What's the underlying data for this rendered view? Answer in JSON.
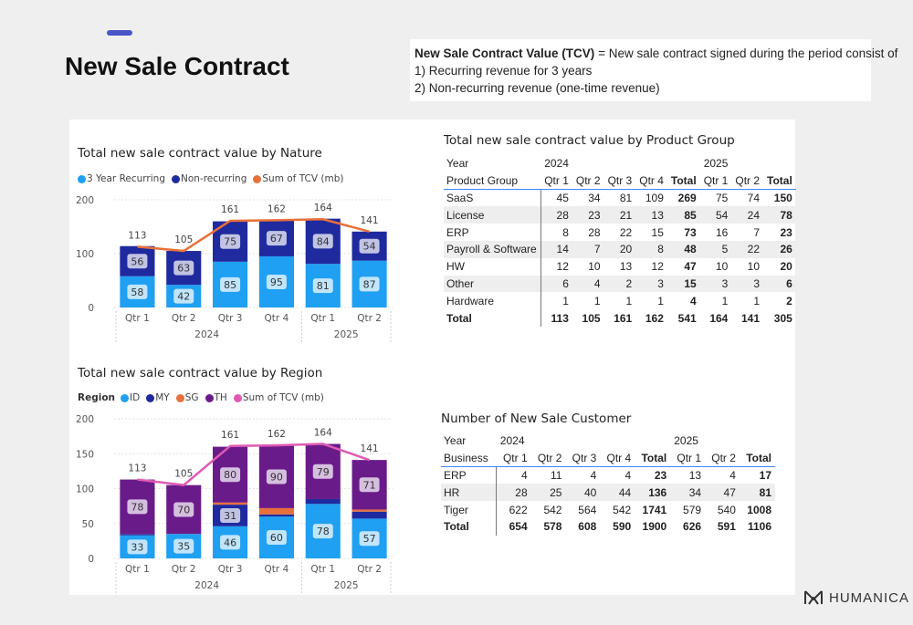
{
  "header": {
    "title": "New Sale Contract",
    "definition_bold": "New Sale Contract Value (TCV)",
    "definition_rest": "= New sale contract signed during the period consist of",
    "definition_line2": "1) Recurring revenue for 3 years",
    "definition_line3": "2) Non-recurring revenue (one-time revenue)"
  },
  "brand": {
    "name": "HUMANICA"
  },
  "colors": {
    "recurring": "#1fa0f2",
    "nonrecurring": "#1f2a9e",
    "tcv_line_nature": "#e8703a",
    "id": "#1fa0f2",
    "my": "#1f2a9e",
    "sg": "#e8703a",
    "th": "#6a1b8a",
    "tcv_line_region": "#e05ab4",
    "table_accent": "#3b86f7"
  },
  "chart_data": [
    {
      "type": "bar",
      "title": "Total new sale contract value by Nature",
      "legend_position": "top-left",
      "categories": [
        "Qtr 1",
        "Qtr 2",
        "Qtr 3",
        "Qtr 4",
        "Qtr 1",
        "Qtr 2"
      ],
      "category_groups": [
        {
          "label": "2024",
          "span": 4
        },
        {
          "label": "2025",
          "span": 2
        }
      ],
      "series": [
        {
          "name": "3 Year Recurring",
          "values": [
            58,
            42,
            85,
            95,
            81,
            87
          ],
          "color": "#1fa0f2"
        },
        {
          "name": "Non-recurring",
          "values": [
            56,
            63,
            75,
            67,
            84,
            54
          ],
          "color": "#1f2a9e"
        }
      ],
      "line": {
        "name": "Sum of TCV (mb)",
        "values": [
          113,
          105,
          161,
          162,
          164,
          141
        ],
        "color": "#e8703a"
      },
      "ylim": [
        0,
        200
      ],
      "yticks": [
        0,
        100,
        200
      ],
      "grid": true
    },
    {
      "type": "bar",
      "title": "Total new sale contract value by Region",
      "legend_title": "Region",
      "legend_position": "top-left",
      "categories": [
        "Qtr 1",
        "Qtr 2",
        "Qtr 3",
        "Qtr 4",
        "Qtr 1",
        "Qtr 2"
      ],
      "category_groups": [
        {
          "label": "2024",
          "span": 4
        },
        {
          "label": "2025",
          "span": 2
        }
      ],
      "series": [
        {
          "name": "ID",
          "values": [
            33,
            35,
            46,
            60,
            78,
            57
          ],
          "color": "#1fa0f2",
          "labels": [
            "33",
            "35",
            "46",
            "60",
            "78",
            "57"
          ]
        },
        {
          "name": "MY",
          "values": [
            2,
            0,
            31,
            3,
            7,
            10
          ],
          "color": "#1f2a9e",
          "labels": [
            "",
            "",
            "31",
            "",
            "",
            ""
          ]
        },
        {
          "name": "SG",
          "values": [
            0,
            0,
            3,
            9,
            0,
            3
          ],
          "color": "#e8703a",
          "labels": [
            "",
            "",
            "",
            "",
            "",
            ""
          ]
        },
        {
          "name": "TH",
          "values": [
            78,
            70,
            80,
            90,
            79,
            71
          ],
          "color": "#6a1b8a",
          "labels": [
            "78",
            "70",
            "80",
            "90",
            "79",
            "71"
          ]
        }
      ],
      "line": {
        "name": "Sum of TCV (mb)",
        "values": [
          113,
          105,
          161,
          162,
          164,
          141
        ],
        "color": "#e05ab4"
      },
      "ylim": [
        0,
        200
      ],
      "yticks": [
        0,
        50,
        100,
        150,
        200
      ],
      "grid": true
    },
    {
      "type": "table",
      "title": "Total new sale contract value by Product Group",
      "row_header_label": "Product Group",
      "year_label": "Year",
      "years": [
        {
          "label": "2024",
          "span": 5
        },
        {
          "label": "2025",
          "span": 3
        }
      ],
      "columns": [
        "Qtr 1",
        "Qtr 2",
        "Qtr 3",
        "Qtr 4",
        "Total",
        "Qtr 1",
        "Qtr 2",
        "Total"
      ],
      "rows": [
        {
          "name": "SaaS",
          "values": [
            "45",
            "34",
            "81",
            "109",
            "269",
            "75",
            "74",
            "150"
          ]
        },
        {
          "name": "License",
          "values": [
            "28",
            "23",
            "21",
            "13",
            "85",
            "54",
            "24",
            "78"
          ]
        },
        {
          "name": "ERP",
          "values": [
            "8",
            "28",
            "22",
            "15",
            "73",
            "16",
            "7",
            "23"
          ]
        },
        {
          "name": "Payroll & Software",
          "values": [
            "14",
            "7",
            "20",
            "8",
            "48",
            "5",
            "22",
            "26"
          ]
        },
        {
          "name": "HW",
          "values": [
            "12",
            "10",
            "13",
            "12",
            "47",
            "10",
            "10",
            "20"
          ]
        },
        {
          "name": "Other",
          "values": [
            "6",
            "4",
            "2",
            "3",
            "15",
            "3",
            "3",
            "6"
          ]
        },
        {
          "name": "Hardware",
          "values": [
            "1",
            "1",
            "1",
            "1",
            "4",
            "1",
            "1",
            "2"
          ]
        }
      ],
      "total_row": {
        "name": "Total",
        "values": [
          "113",
          "105",
          "161",
          "162",
          "541",
          "164",
          "141",
          "305"
        ]
      }
    },
    {
      "type": "table",
      "title": "Number of New Sale Customer",
      "row_header_label": "Business",
      "year_label": "Year",
      "years": [
        {
          "label": "2024",
          "span": 5
        },
        {
          "label": "2025",
          "span": 3
        }
      ],
      "columns": [
        "Qtr 1",
        "Qtr 2",
        "Qtr 3",
        "Qtr 4",
        "Total",
        "Qtr 1",
        "Qtr 2",
        "Total"
      ],
      "rows": [
        {
          "name": "ERP",
          "values": [
            "4",
            "11",
            "4",
            "4",
            "23",
            "13",
            "4",
            "17"
          ]
        },
        {
          "name": "HR",
          "values": [
            "28",
            "25",
            "40",
            "44",
            "136",
            "34",
            "47",
            "81"
          ]
        },
        {
          "name": "Tiger",
          "values": [
            "622",
            "542",
            "564",
            "542",
            "1741",
            "579",
            "540",
            "1008"
          ]
        }
      ],
      "total_row": {
        "name": "Total",
        "values": [
          "654",
          "578",
          "608",
          "590",
          "1900",
          "626",
          "591",
          "1106"
        ]
      }
    }
  ]
}
